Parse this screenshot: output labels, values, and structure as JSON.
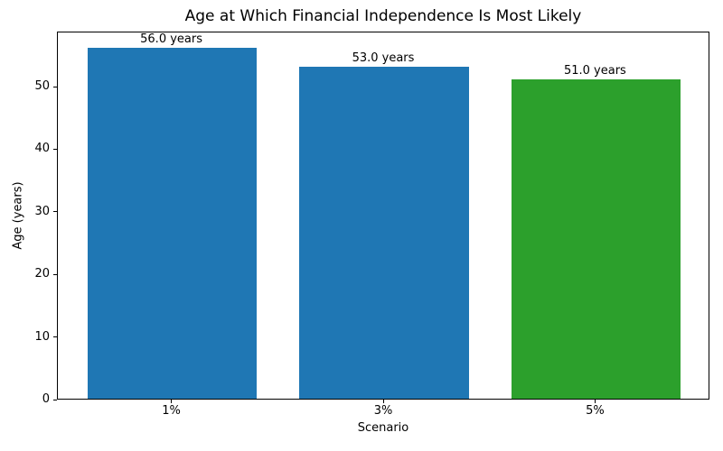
{
  "chart_data": {
    "type": "bar",
    "title": "Age at Which Financial Independence Is Most Likely",
    "xlabel": "Scenario",
    "ylabel": "Age (years)",
    "categories": [
      "1%",
      "3%",
      "5%"
    ],
    "values": [
      56.0,
      53.0,
      51.0
    ],
    "bar_labels": [
      "56.0 years",
      "53.0 years",
      "51.0 years"
    ],
    "bar_colors": [
      "#1f77b4",
      "#1f77b4",
      "#2ca02c"
    ],
    "ylim": [
      0,
      58.8
    ],
    "yticks": [
      0,
      10,
      20,
      30,
      40,
      50
    ],
    "grid": false,
    "legend": false
  },
  "colors": {
    "bar_blue": "#1f77b4",
    "bar_green": "#2ca02c",
    "spine": "#000000",
    "text": "#000000",
    "background": "#ffffff"
  }
}
